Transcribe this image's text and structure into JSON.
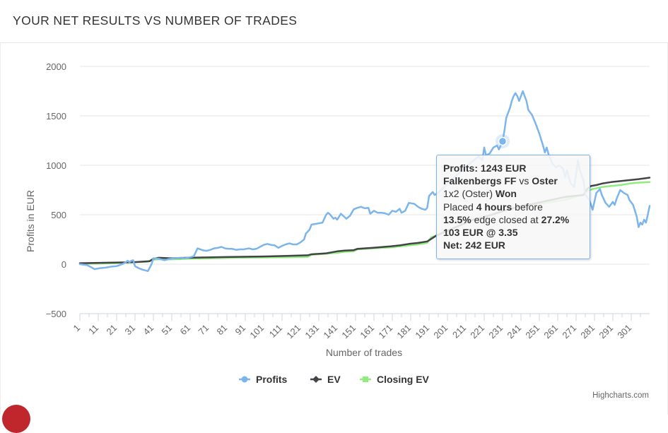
{
  "header": {
    "title": "YOUR NET RESULTS VS NUMBER OF TRADES"
  },
  "chart_data": {
    "type": "line",
    "title": "",
    "xlabel": "Number of trades",
    "ylabel": "Profits in EUR",
    "xlim": [
      1,
      302
    ],
    "ylim": [
      -500,
      2000
    ],
    "y_ticks": [
      2000,
      1500,
      1000,
      500,
      0,
      -500
    ],
    "y_tick_labels": [
      "2000",
      "1500",
      "1000",
      "500",
      "0",
      "−500"
    ],
    "x_ticks": [
      1,
      11,
      21,
      31,
      41,
      51,
      61,
      71,
      81,
      91,
      101,
      111,
      121,
      131,
      141,
      151,
      161,
      171,
      181,
      191,
      201,
      211,
      221,
      231,
      241,
      251,
      261,
      271,
      281,
      291,
      301
    ],
    "x_tick_labels": [
      "1",
      "11",
      "21",
      "31",
      "41",
      "51",
      "61",
      "71",
      "81",
      "91",
      "101",
      "111",
      "121",
      "131",
      "141",
      "151",
      "161",
      "171",
      "181",
      "191",
      "201",
      "211",
      "221",
      "231",
      "241",
      "251",
      "261",
      "271",
      "281",
      "291",
      "301"
    ],
    "grid": "horizontal",
    "legend_position": "bottom-center",
    "series": [
      {
        "name": "Profits",
        "color": "#7cb5ec",
        "marker": "circle",
        "points": [
          [
            1,
            0
          ],
          [
            5,
            -10
          ],
          [
            9,
            -50
          ],
          [
            12,
            -40
          ],
          [
            15,
            -35
          ],
          [
            18,
            -25
          ],
          [
            21,
            -20
          ],
          [
            24,
            0
          ],
          [
            26,
            20
          ],
          [
            27,
            35
          ],
          [
            28,
            20
          ],
          [
            29,
            35
          ],
          [
            30,
            40
          ],
          [
            31,
            -20
          ],
          [
            33,
            -40
          ],
          [
            35,
            -55
          ],
          [
            37,
            -65
          ],
          [
            38,
            -70
          ],
          [
            40,
            0
          ],
          [
            41,
            60
          ],
          [
            44,
            55
          ],
          [
            47,
            40
          ],
          [
            49,
            50
          ],
          [
            52,
            60
          ],
          [
            56,
            65
          ],
          [
            58,
            60
          ],
          [
            61,
            70
          ],
          [
            63,
            80
          ],
          [
            64,
            120
          ],
          [
            65,
            160
          ],
          [
            68,
            140
          ],
          [
            70,
            135
          ],
          [
            72,
            145
          ],
          [
            74,
            160
          ],
          [
            76,
            165
          ],
          [
            78,
            175
          ],
          [
            80,
            160
          ],
          [
            82,
            155
          ],
          [
            84,
            155
          ],
          [
            86,
            145
          ],
          [
            88,
            150
          ],
          [
            90,
            150
          ],
          [
            93,
            160
          ],
          [
            95,
            150
          ],
          [
            97,
            155
          ],
          [
            99,
            175
          ],
          [
            101,
            195
          ],
          [
            103,
            205
          ],
          [
            105,
            195
          ],
          [
            107,
            190
          ],
          [
            109,
            165
          ],
          [
            111,
            185
          ],
          [
            113,
            200
          ],
          [
            115,
            210
          ],
          [
            117,
            200
          ],
          [
            119,
            200
          ],
          [
            121,
            220
          ],
          [
            123,
            250
          ],
          [
            124,
            310
          ],
          [
            126,
            350
          ],
          [
            127,
            400
          ],
          [
            130,
            410
          ],
          [
            133,
            420
          ],
          [
            135,
            500
          ],
          [
            136,
            520
          ],
          [
            137,
            505
          ],
          [
            139,
            460
          ],
          [
            140,
            470
          ],
          [
            141,
            450
          ],
          [
            143,
            510
          ],
          [
            146,
            460
          ],
          [
            148,
            490
          ],
          [
            150,
            555
          ],
          [
            152,
            570
          ],
          [
            154,
            580
          ],
          [
            156,
            565
          ],
          [
            158,
            570
          ],
          [
            159,
            510
          ],
          [
            161,
            540
          ],
          [
            163,
            520
          ],
          [
            165,
            520
          ],
          [
            167,
            515
          ],
          [
            169,
            500
          ],
          [
            171,
            540
          ],
          [
            173,
            530
          ],
          [
            175,
            560
          ],
          [
            176,
            520
          ],
          [
            178,
            540
          ],
          [
            180,
            620
          ],
          [
            183,
            610
          ],
          [
            185,
            580
          ],
          [
            187,
            560
          ],
          [
            189,
            550
          ],
          [
            190,
            570
          ],
          [
            191,
            690
          ],
          [
            193,
            730
          ],
          [
            194,
            700
          ],
          [
            196,
            720
          ],
          [
            198,
            760
          ],
          [
            200,
            800
          ],
          [
            203,
            850
          ],
          [
            206,
            900
          ],
          [
            209,
            950
          ],
          [
            212,
            1000
          ],
          [
            214,
            1030
          ],
          [
            216,
            1060
          ],
          [
            218,
            1090
          ],
          [
            220,
            1050
          ],
          [
            221,
            1180
          ],
          [
            222,
            1100
          ],
          [
            224,
            1120
          ],
          [
            226,
            1180
          ],
          [
            228,
            1200
          ],
          [
            229,
            1160
          ],
          [
            231,
            1243
          ],
          [
            232,
            1350
          ],
          [
            233,
            1480
          ],
          [
            234,
            1530
          ],
          [
            235,
            1580
          ],
          [
            236,
            1650
          ],
          [
            237,
            1700
          ],
          [
            238,
            1730
          ],
          [
            239,
            1700
          ],
          [
            240,
            1650
          ],
          [
            241,
            1700
          ],
          [
            242,
            1750
          ],
          [
            243,
            1700
          ],
          [
            244,
            1650
          ],
          [
            245,
            1560
          ],
          [
            247,
            1510
          ],
          [
            249,
            1420
          ],
          [
            251,
            1320
          ],
          [
            253,
            1200
          ],
          [
            254,
            1130
          ],
          [
            255,
            1180
          ],
          [
            256,
            1110
          ],
          [
            258,
            1020
          ],
          [
            260,
            980
          ],
          [
            262,
            1000
          ],
          [
            264,
            960
          ],
          [
            265,
            880
          ],
          [
            266,
            950
          ],
          [
            268,
            820
          ],
          [
            270,
            780
          ],
          [
            272,
            1050
          ],
          [
            273,
            950
          ],
          [
            275,
            850
          ],
          [
            276,
            700
          ],
          [
            278,
            660
          ],
          [
            280,
            550
          ],
          [
            282,
            720
          ],
          [
            284,
            760
          ],
          [
            285,
            700
          ],
          [
            287,
            620
          ],
          [
            289,
            580
          ],
          [
            291,
            630
          ],
          [
            292,
            600
          ],
          [
            293,
            660
          ],
          [
            295,
            750
          ],
          [
            297,
            720
          ],
          [
            299,
            700
          ],
          [
            300,
            650
          ],
          [
            302,
            600
          ],
          [
            304,
            480
          ],
          [
            305,
            375
          ],
          [
            306,
            420
          ],
          [
            307,
            400
          ],
          [
            308,
            450
          ],
          [
            309,
            420
          ],
          [
            310,
            500
          ],
          [
            311,
            590
          ]
        ]
      },
      {
        "name": "EV",
        "color": "#434348",
        "marker": "diamond",
        "points": [
          [
            1,
            10
          ],
          [
            30,
            20
          ],
          [
            39,
            30
          ],
          [
            41,
            55
          ],
          [
            44,
            65
          ],
          [
            50,
            60
          ],
          [
            60,
            65
          ],
          [
            80,
            72
          ],
          [
            100,
            78
          ],
          [
            110,
            82
          ],
          [
            120,
            88
          ],
          [
            125,
            90
          ],
          [
            127,
            100
          ],
          [
            135,
            110
          ],
          [
            141,
            130
          ],
          [
            145,
            138
          ],
          [
            150,
            142
          ],
          [
            152,
            155
          ],
          [
            160,
            165
          ],
          [
            170,
            180
          ],
          [
            175,
            190
          ],
          [
            180,
            205
          ],
          [
            185,
            215
          ],
          [
            190,
            230
          ],
          [
            195,
            290
          ],
          [
            200,
            330
          ],
          [
            205,
            370
          ],
          [
            210,
            410
          ],
          [
            215,
            450
          ],
          [
            220,
            470
          ],
          [
            225,
            500
          ],
          [
            230,
            530
          ],
          [
            235,
            560
          ],
          [
            240,
            580
          ],
          [
            245,
            600
          ],
          [
            250,
            620
          ],
          [
            255,
            640
          ],
          [
            260,
            660
          ],
          [
            265,
            680
          ],
          [
            270,
            690
          ],
          [
            275,
            700
          ],
          [
            277,
            760
          ],
          [
            279,
            790
          ],
          [
            282,
            800
          ],
          [
            285,
            815
          ],
          [
            290,
            830
          ],
          [
            295,
            840
          ],
          [
            300,
            850
          ],
          [
            305,
            860
          ],
          [
            311,
            875
          ]
        ]
      },
      {
        "name": "Closing EV",
        "color": "#90ed7d",
        "marker": "square",
        "points": [
          [
            1,
            5
          ],
          [
            10,
            5
          ],
          [
            20,
            10
          ],
          [
            30,
            20
          ],
          [
            38,
            25
          ],
          [
            40,
            45
          ],
          [
            45,
            50
          ],
          [
            50,
            48
          ],
          [
            60,
            55
          ],
          [
            70,
            58
          ],
          [
            80,
            62
          ],
          [
            90,
            66
          ],
          [
            100,
            68
          ],
          [
            110,
            70
          ],
          [
            120,
            72
          ],
          [
            125,
            74
          ],
          [
            127,
            95
          ],
          [
            135,
            105
          ],
          [
            141,
            115
          ],
          [
            145,
            125
          ],
          [
            150,
            130
          ],
          [
            152,
            150
          ],
          [
            160,
            160
          ],
          [
            170,
            170
          ],
          [
            180,
            190
          ],
          [
            185,
            200
          ],
          [
            190,
            215
          ],
          [
            192,
            270
          ],
          [
            195,
            290
          ],
          [
            200,
            330
          ],
          [
            205,
            370
          ],
          [
            210,
            410
          ],
          [
            215,
            450
          ],
          [
            220,
            475
          ],
          [
            225,
            500
          ],
          [
            230,
            530
          ],
          [
            235,
            560
          ],
          [
            240,
            580
          ],
          [
            245,
            600
          ],
          [
            250,
            610
          ],
          [
            255,
            620
          ],
          [
            260,
            635
          ],
          [
            265,
            650
          ],
          [
            270,
            680
          ],
          [
            275,
            700
          ],
          [
            277,
            740
          ],
          [
            280,
            760
          ],
          [
            285,
            780
          ],
          [
            290,
            790
          ],
          [
            295,
            800
          ],
          [
            300,
            815
          ],
          [
            305,
            825
          ],
          [
            311,
            830
          ]
        ]
      }
    ],
    "highlight": {
      "series": "Profits",
      "x": 231,
      "y": 1243
    }
  },
  "tooltip": {
    "line1_label": "Profits: 1243 EUR",
    "line2_home": "Falkenbergs FF",
    "line2_vs": "vs",
    "line2_away": "Oster",
    "line3_market": "1x2 (Oster)",
    "line3_result": "Won",
    "line4_pre": "Placed",
    "line4_time": "4 hours",
    "line4_post": "before",
    "line5_edge": "13.5%",
    "line5_mid": "edge closed at",
    "line5_closed": "27.2%",
    "line6_stake": "103 EUR @ 3.35",
    "line7_net": "Net: 242 EUR"
  },
  "credits": {
    "label": "Highcharts.com"
  }
}
